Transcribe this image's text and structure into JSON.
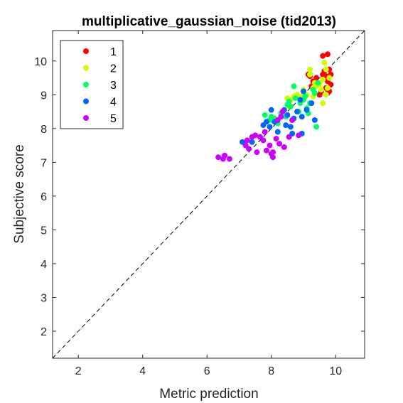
{
  "chart_data": {
    "type": "scatter",
    "title": "multiplicative_gaussian_noise (tid2013)",
    "xlabel": "Metric prediction",
    "ylabel": "Subjective score",
    "xlim": [
      1.2,
      10.9
    ],
    "ylim": [
      1.2,
      10.9
    ],
    "xticks": [
      2,
      4,
      6,
      8,
      10
    ],
    "yticks": [
      2,
      3,
      4,
      5,
      6,
      7,
      8,
      9,
      10
    ],
    "grid": false,
    "legend_position": "top-left",
    "reference_line": "y = x (dashed)",
    "series": [
      {
        "name": "1",
        "color": "#ff0000",
        "points": [
          [
            9.15,
            9.6
          ],
          [
            9.2,
            9.55
          ],
          [
            9.3,
            9.4
          ],
          [
            9.25,
            9.25
          ],
          [
            9.45,
            9.3
          ],
          [
            9.55,
            9.1
          ],
          [
            9.5,
            9.0
          ],
          [
            9.6,
            10.15
          ],
          [
            9.75,
            10.2
          ],
          [
            9.65,
            9.7
          ],
          [
            9.7,
            9.55
          ],
          [
            9.8,
            9.75
          ],
          [
            9.85,
            9.6
          ],
          [
            9.75,
            9.4
          ],
          [
            9.7,
            9.2
          ],
          [
            9.8,
            9.1
          ],
          [
            9.85,
            9.3
          ],
          [
            9.6,
            9.6
          ],
          [
            9.75,
            9.05
          ],
          [
            9.4,
            9.5
          ]
        ]
      },
      {
        "name": "2",
        "color": "#ccff00",
        "points": [
          [
            8.5,
            8.9
          ],
          [
            8.6,
            8.85
          ],
          [
            8.7,
            8.95
          ],
          [
            8.8,
            9.0
          ],
          [
            8.95,
            8.95
          ],
          [
            9.1,
            9.0
          ],
          [
            9.2,
            9.75
          ],
          [
            9.3,
            9.2
          ],
          [
            9.35,
            9.35
          ],
          [
            9.4,
            9.25
          ],
          [
            9.55,
            9.15
          ],
          [
            9.6,
            9.45
          ],
          [
            9.65,
            9.95
          ],
          [
            9.7,
            9.75
          ],
          [
            9.6,
            8.75
          ],
          [
            9.75,
            9.2
          ],
          [
            9.8,
            9.5
          ],
          [
            9.3,
            8.95
          ],
          [
            9.5,
            9.3
          ],
          [
            9.0,
            9.15
          ],
          [
            8.9,
            8.75
          ],
          [
            8.55,
            8.65
          ],
          [
            9.2,
            9.6
          ],
          [
            9.7,
            9.0
          ]
        ]
      },
      {
        "name": "3",
        "color": "#00ff66",
        "points": [
          [
            7.8,
            8.4
          ],
          [
            7.95,
            8.25
          ],
          [
            8.1,
            8.3
          ],
          [
            8.2,
            8.15
          ],
          [
            8.3,
            8.45
          ],
          [
            8.45,
            8.35
          ],
          [
            8.5,
            8.7
          ],
          [
            8.55,
            8.8
          ],
          [
            8.6,
            8.65
          ],
          [
            8.7,
            9.25
          ],
          [
            8.75,
            8.9
          ],
          [
            8.9,
            8.75
          ],
          [
            9.0,
            8.85
          ],
          [
            9.05,
            8.95
          ],
          [
            9.1,
            8.6
          ],
          [
            9.2,
            8.75
          ],
          [
            9.3,
            9.15
          ],
          [
            9.35,
            9.05
          ],
          [
            9.45,
            9.35
          ],
          [
            9.4,
            8.05
          ],
          [
            8.85,
            8.5
          ],
          [
            9.15,
            8.45
          ],
          [
            8.0,
            8.35
          ],
          [
            8.65,
            8.25
          ]
        ]
      },
      {
        "name": "4",
        "color": "#0066ff",
        "points": [
          [
            7.1,
            7.6
          ],
          [
            7.4,
            7.6
          ],
          [
            7.75,
            8.1
          ],
          [
            7.85,
            8.2
          ],
          [
            7.95,
            8.05
          ],
          [
            8.0,
            8.55
          ],
          [
            8.1,
            8.2
          ],
          [
            8.2,
            7.9
          ],
          [
            8.3,
            8.35
          ],
          [
            8.45,
            8.1
          ],
          [
            8.5,
            8.4
          ],
          [
            8.6,
            8.05
          ],
          [
            8.65,
            7.85
          ],
          [
            8.7,
            8.3
          ],
          [
            8.8,
            8.5
          ],
          [
            8.9,
            8.85
          ],
          [
            8.95,
            8.35
          ],
          [
            9.1,
            8.55
          ],
          [
            9.25,
            8.75
          ],
          [
            9.35,
            8.25
          ],
          [
            8.95,
            7.85
          ],
          [
            9.0,
            9.1
          ],
          [
            8.4,
            8.55
          ]
        ]
      },
      {
        "name": "5",
        "color": "#cc00ff",
        "points": [
          [
            6.35,
            7.15
          ],
          [
            6.5,
            7.1
          ],
          [
            6.55,
            7.2
          ],
          [
            6.7,
            7.1
          ],
          [
            7.2,
            7.5
          ],
          [
            7.25,
            7.65
          ],
          [
            7.3,
            7.4
          ],
          [
            7.4,
            7.75
          ],
          [
            7.5,
            7.8
          ],
          [
            7.55,
            7.3
          ],
          [
            7.65,
            7.75
          ],
          [
            7.75,
            7.65
          ],
          [
            7.85,
            7.35
          ],
          [
            7.95,
            7.5
          ],
          [
            8.0,
            7.25
          ],
          [
            8.05,
            7.15
          ],
          [
            8.15,
            7.7
          ],
          [
            8.2,
            8.25
          ],
          [
            8.25,
            7.55
          ],
          [
            8.35,
            8.5
          ],
          [
            8.4,
            7.45
          ],
          [
            8.55,
            7.75
          ],
          [
            8.65,
            8.25
          ],
          [
            8.85,
            7.8
          ],
          [
            8.05,
            7.3
          ],
          [
            7.8,
            7.9
          ],
          [
            8.3,
            8.35
          ]
        ]
      }
    ]
  }
}
